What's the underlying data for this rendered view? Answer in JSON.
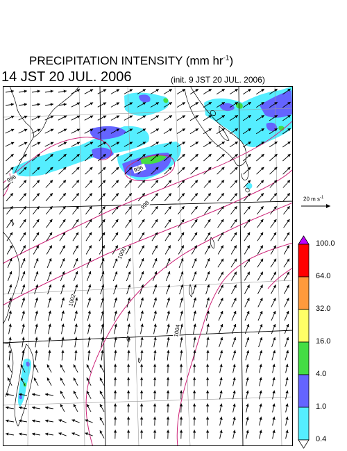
{
  "header": {
    "title": "PRECIPITATION INTENSITY (mm hr",
    "title_sup": "-1",
    "title_end": ")",
    "valid_time": "14 JST 20 JUL. 2006",
    "init_time": "(init. 9 JST 20 JUL. 2006)"
  },
  "wind_reference": {
    "label": "20 m s",
    "label_sup": "-1"
  },
  "isobars": {
    "labels": [
      "996",
      "996",
      "998",
      "1000",
      "1002",
      "1004"
    ]
  },
  "legend": {
    "levels": [
      "100.0",
      "64.0",
      "32.0",
      "16.0",
      "4.0",
      "1.0",
      "0.4"
    ],
    "colors": {
      "above": "#c000ff",
      "64-100": "#ff0000",
      "32-64": "#ff9a3c",
      "16-32": "#ffff66",
      "4-16": "#44dd44",
      "1-4": "#6464ff",
      "0.4-1": "#55eeff",
      "below": "#ffffff"
    }
  },
  "colors": {
    "isobar": "#cc2277",
    "grid": "#999999",
    "rain_light": "#55eeff",
    "rain_moderate": "#6464ff",
    "rain_heavy": "#44dd44"
  }
}
